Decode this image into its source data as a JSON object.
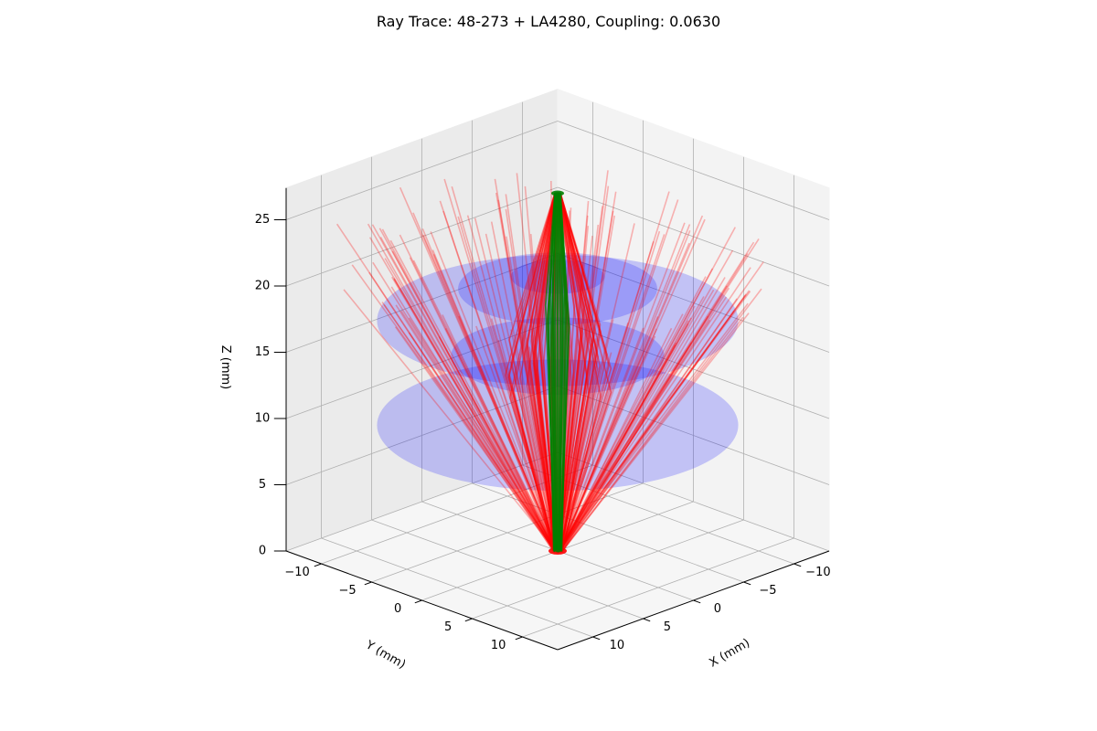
{
  "chart_data": {
    "type": "3d-ray-trace",
    "title": "Ray Trace: 48-273 + LA4280, Coupling: 0.0630",
    "xlabel": "X (mm)",
    "ylabel": "Y (mm)",
    "zlabel": "Z (mm)",
    "xlim": [
      -13.5,
      13.5
    ],
    "ylim": [
      -13.5,
      13.5
    ],
    "zlim": [
      0,
      27.4
    ],
    "x_ticks": [
      -10,
      -5,
      0,
      5,
      10
    ],
    "y_ticks": [
      -10,
      -5,
      0,
      5,
      10
    ],
    "z_ticks": [
      0,
      5,
      10,
      15,
      20,
      25
    ],
    "x_tick_labels": [
      "−10",
      "−5",
      "0",
      "5",
      "10"
    ],
    "y_tick_labels": [
      "−10",
      "−5",
      "0",
      "5",
      "10"
    ],
    "z_tick_labels": [
      "0",
      "5",
      "10",
      "15",
      "20",
      "25"
    ],
    "grid": true,
    "view": {
      "elevation_deg": 20,
      "azimuth_deg": 45
    },
    "source": {
      "z": 0,
      "radius": 0.4
    },
    "focus": {
      "z": 27,
      "radius": 0.2
    },
    "lens_surfaces": [
      {
        "z": 9.5,
        "radius": 12.7
      },
      {
        "z": 14.7,
        "radius": 7.5
      },
      {
        "z": 17.4,
        "radius": 12.7
      },
      {
        "z": 19.8,
        "radius": 7.0
      },
      {
        "z": 20.7,
        "radius": 3.3
      }
    ],
    "colors": {
      "lost_rays": "#ff0000",
      "coupled_rays": "#008000",
      "lens_surface": "#0000ff",
      "grid": "#b0b0b0",
      "pane_left": "#ebebeb",
      "pane_right": "#f3f3f3",
      "pane_floor": "#f6f6f6"
    }
  }
}
